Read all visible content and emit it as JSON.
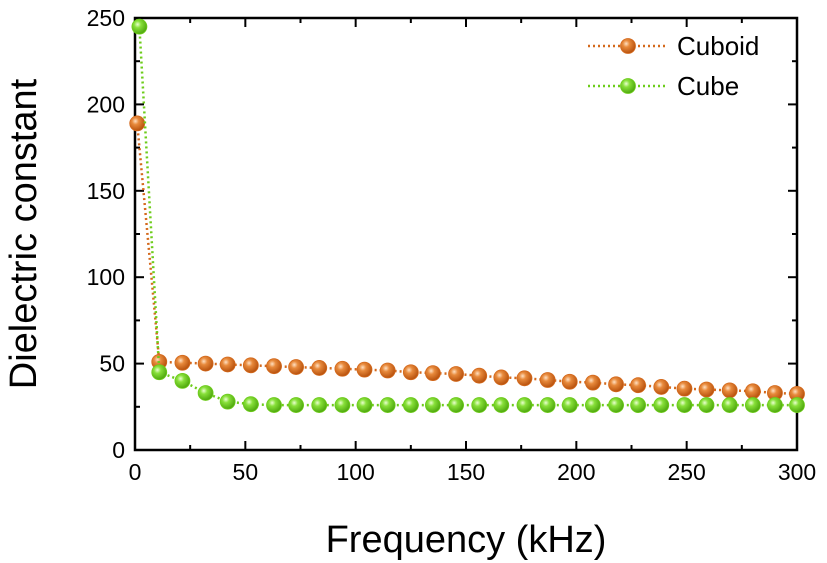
{
  "chart_data": {
    "type": "line",
    "xlabel": "Frequency (kHz)",
    "ylabel": "Dielectric constant",
    "xlim": [
      0,
      300
    ],
    "ylim": [
      0,
      250
    ],
    "xticks": [
      0,
      50,
      100,
      150,
      200,
      250,
      300
    ],
    "yticks": [
      0,
      50,
      100,
      150,
      200,
      250
    ],
    "grid": false,
    "legend_position": "top-right",
    "series": [
      {
        "name": "Cuboid",
        "color": "#d4691c",
        "x": [
          1,
          11,
          21.5,
          32,
          42,
          52.5,
          63,
          73,
          83.5,
          94,
          104,
          114.5,
          125,
          135,
          145.5,
          156,
          166,
          176.5,
          187,
          197,
          207.5,
          218,
          228,
          238.5,
          249,
          259,
          269.5,
          280,
          290,
          300
        ],
        "values": [
          189,
          51,
          50.5,
          50,
          49.5,
          49,
          48.5,
          48,
          47.5,
          47,
          46.5,
          46,
          45,
          44.5,
          44,
          43,
          42,
          41.5,
          40.5,
          39.5,
          39,
          38,
          37.5,
          36.5,
          35.5,
          35,
          34.5,
          34,
          33,
          32.5
        ]
      },
      {
        "name": "Cube",
        "color": "#6dcc1a",
        "x": [
          2,
          11,
          21.5,
          32,
          42,
          52.5,
          63,
          73,
          83.5,
          94,
          104,
          114.5,
          125,
          135,
          145.5,
          156,
          166,
          176.5,
          187,
          197,
          207.5,
          218,
          228,
          238.5,
          249,
          259,
          269.5,
          280,
          290,
          300
        ],
        "values": [
          245,
          45,
          40,
          33,
          28,
          26.5,
          26,
          26,
          26,
          26,
          26,
          26,
          26,
          26,
          26,
          26,
          26,
          26,
          26,
          26,
          26,
          26,
          26,
          26,
          26,
          26,
          26,
          26,
          26,
          26
        ]
      }
    ]
  }
}
